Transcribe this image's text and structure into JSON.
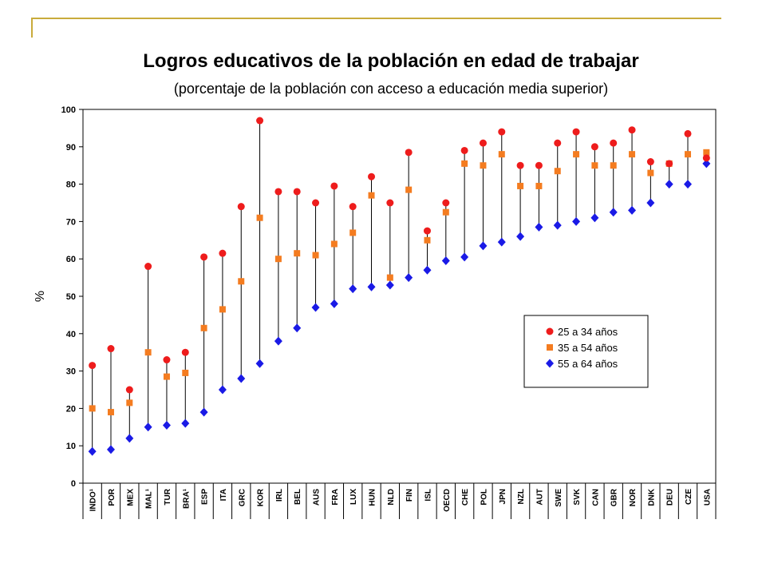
{
  "colors": {
    "frame_accent": "#c9ab3b",
    "series_25_34": "#ee1c1c",
    "series_35_54": "#f47c20",
    "series_55_64": "#1a1ae6"
  },
  "chart_data": {
    "type": "scatter",
    "title": "Logros educativos de la población en edad de trabajar",
    "subtitle": "(porcentaje de la población con acceso a educación media superior)",
    "ylabel": "%",
    "xlabel": "",
    "ylim": [
      0,
      100
    ],
    "yticks": [
      0,
      10,
      20,
      30,
      40,
      50,
      60,
      70,
      80,
      90,
      100
    ],
    "grid": false,
    "legend_position": "center-right",
    "categories": [
      "INDO¹",
      "POR",
      "MEX",
      "MAL¹",
      "TUR",
      "BRA¹",
      "ESP",
      "ITA",
      "GRC",
      "KOR",
      "IRL",
      "BEL",
      "AUS",
      "FRA",
      "LUX",
      "HUN",
      "NLD",
      "FIN",
      "ISL",
      "OECD",
      "CHE",
      "POL",
      "JPN",
      "NZL",
      "AUT",
      "SWE",
      "SVK",
      "CAN",
      "GBR",
      "NOR",
      "DNK",
      "DEU",
      "CZE",
      "USA"
    ],
    "series": [
      {
        "name": "25 a 34 años",
        "marker": "circle",
        "values": [
          31.5,
          36,
          25,
          58,
          33,
          35,
          60.5,
          61.5,
          74,
          97,
          78,
          78,
          75,
          79.5,
          74,
          82,
          75,
          88.5,
          67.5,
          75,
          89,
          91,
          94,
          85,
          85,
          91,
          94,
          90,
          91,
          94.5,
          86,
          85.5,
          93.5,
          87
        ]
      },
      {
        "name": "35 a 54 años",
        "marker": "square",
        "values": [
          20,
          19,
          21.5,
          35,
          28.5,
          29.5,
          41.5,
          46.5,
          54,
          71,
          60,
          61.5,
          61,
          64,
          67,
          77,
          55,
          78.5,
          65,
          72.5,
          85.5,
          85,
          88,
          79.5,
          79.5,
          83.5,
          88,
          85,
          85,
          88,
          83,
          85.5,
          88,
          88.5
        ]
      },
      {
        "name": "55  a 64 años",
        "marker": "diamond",
        "values": [
          8.5,
          9,
          12,
          15,
          15.5,
          16,
          19,
          25,
          28,
          32,
          38,
          41.5,
          47,
          48,
          52,
          52.5,
          53,
          55,
          57,
          59.5,
          60.5,
          63.5,
          64.5,
          66,
          68.5,
          69,
          70,
          71,
          72.5,
          73,
          75,
          80,
          80,
          85.5
        ]
      }
    ]
  }
}
